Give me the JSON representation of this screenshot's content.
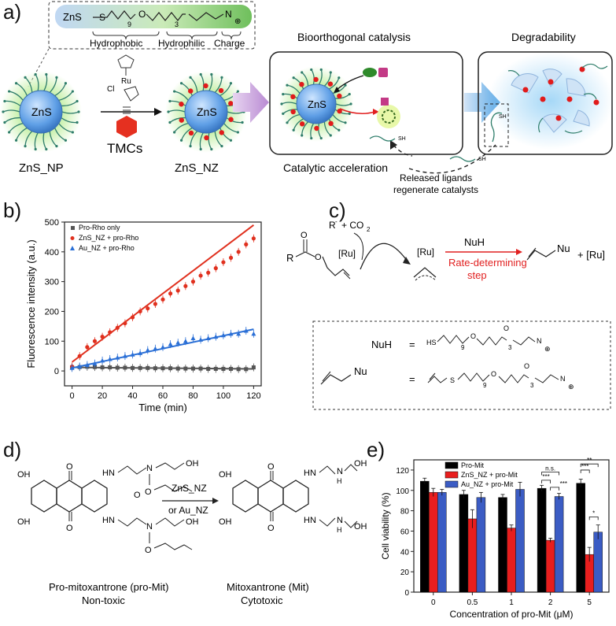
{
  "panels": {
    "a": "a)",
    "b": "b)",
    "c": "c)",
    "d": "d)",
    "e": "e)"
  },
  "panel_a": {
    "ligand_core": "ZnS",
    "ligand_sub9": "9",
    "ligand_sub3": "3",
    "ligand_O": "O",
    "ligand_S": "S",
    "ligand_N": "N",
    "ligand_charge": "⊕",
    "seg_hydrophobic": "Hydrophobic",
    "seg_hydrophilic": "Hydrophilic",
    "seg_charge": "Charge",
    "title_catalysis": "Bioorthogonal catalysis",
    "title_degradability": "Degradability",
    "np_core": "ZnS",
    "np_label": "ZnS_NP",
    "nz_label": "ZnS_NZ",
    "tmc_label": "TMCs",
    "tmc_ru": "Ru",
    "tmc_cl": "Cl",
    "catalytic_label": "Catalytic acceleration",
    "released_1": "Released ligands",
    "released_2": "regenerate catalysts",
    "sh": "SH"
  },
  "panel_c": {
    "r_minus": "R",
    "co2": "+ CO",
    "co2_sub": "2",
    "ru": "[Ru]",
    "nuh": "NuH",
    "rds_1": "Rate-determining",
    "rds_2": "step",
    "nu": "Nu",
    "plus_ru": "+ [Ru]",
    "def_nuh": "NuH",
    "eq": "=",
    "def_hs": "HS",
    "def_nu": "Nu",
    "sub9": "9",
    "sub3": "3",
    "O": "O",
    "S": "S",
    "N": "N",
    "R": "R"
  },
  "panel_d": {
    "pro_name": "Pro-mitoxantrone (pro-Mit)",
    "pro_desc": "Non-toxic",
    "mit_name": "Mitoxantrone (Mit)",
    "mit_desc": "Cytotoxic",
    "reagent_1": "ZnS_NZ",
    "reagent_2": "or Au_NZ",
    "OH": "OH",
    "HN": "HN",
    "NH": "NH",
    "H": "H",
    "N": "N",
    "O": "O"
  },
  "chart_data": [
    {
      "id": "b",
      "type": "scatter",
      "xlabel": "Time (min)",
      "ylabel": "Fluorescence intensity (a.u.)",
      "xlim": [
        -5,
        125
      ],
      "ylim": [
        -50,
        500
      ],
      "xticks": [
        0,
        20,
        40,
        60,
        80,
        100,
        120
      ],
      "yticks": [
        0,
        100,
        200,
        300,
        400,
        500
      ],
      "legend_position": "top-left",
      "series": [
        {
          "name": "Pro-Rho only",
          "color": "#555555",
          "marker": "square",
          "x": [
            0,
            5,
            10,
            15,
            20,
            25,
            30,
            35,
            40,
            45,
            50,
            55,
            60,
            65,
            70,
            75,
            80,
            85,
            90,
            95,
            100,
            105,
            110,
            115,
            120
          ],
          "y": [
            12,
            13,
            14,
            13,
            12,
            12,
            11,
            11,
            10,
            10,
            10,
            9,
            9,
            9,
            8,
            8,
            8,
            8,
            7,
            7,
            7,
            7,
            6,
            6,
            12
          ],
          "fit": [
            12,
            7
          ]
        },
        {
          "name": "ZnS_NZ + pro-Rho",
          "color": "#e0301e",
          "marker": "circle",
          "x": [
            0,
            5,
            10,
            15,
            20,
            25,
            30,
            35,
            40,
            45,
            50,
            55,
            60,
            65,
            70,
            75,
            80,
            85,
            90,
            95,
            100,
            105,
            110,
            115,
            120
          ],
          "y": [
            15,
            50,
            80,
            100,
            115,
            130,
            145,
            160,
            180,
            200,
            210,
            225,
            240,
            260,
            270,
            285,
            300,
            320,
            330,
            345,
            365,
            380,
            400,
            425,
            445
          ],
          "fit": [
            30,
            490
          ]
        },
        {
          "name": "Au_NZ + pro-Rho",
          "color": "#2a6fd6",
          "marker": "triangle",
          "x": [
            0,
            5,
            10,
            15,
            20,
            25,
            30,
            35,
            40,
            45,
            50,
            55,
            60,
            65,
            70,
            75,
            80,
            85,
            90,
            95,
            100,
            105,
            110,
            115,
            120
          ],
          "y": [
            10,
            15,
            20,
            25,
            35,
            40,
            45,
            50,
            55,
            60,
            70,
            75,
            80,
            90,
            95,
            100,
            110,
            105,
            110,
            115,
            120,
            125,
            125,
            135,
            125
          ],
          "fit": [
            10,
            140
          ]
        }
      ]
    },
    {
      "id": "e",
      "type": "bar",
      "xlabel": "Concentration of pro-Mit (μM)",
      "ylabel": "Cell viability (%)",
      "ylim": [
        0,
        130
      ],
      "yticks": [
        0,
        20,
        40,
        60,
        80,
        100,
        120
      ],
      "categories": [
        "0",
        "0.5",
        "1",
        "2",
        "5"
      ],
      "legend_position": "top",
      "series": [
        {
          "name": "Pro-Mit",
          "color": "#000000",
          "values": [
            109,
            96,
            93,
            102,
            107
          ],
          "err": [
            3,
            4,
            3,
            3,
            4
          ]
        },
        {
          "name": "ZnS_NZ + pro-Mit",
          "color": "#e81e1e",
          "values": [
            98,
            72,
            63,
            51,
            37
          ],
          "err": [
            4,
            9,
            3,
            2,
            7
          ]
        },
        {
          "name": "Au_NZ + pro-Mit",
          "color": "#3b5cc4",
          "values": [
            98,
            93,
            101,
            94,
            59
          ],
          "err": [
            3,
            5,
            7,
            3,
            7
          ]
        }
      ],
      "annotations": [
        "n.s.",
        "***",
        "***",
        "***",
        "**",
        "***",
        "*"
      ]
    }
  ]
}
